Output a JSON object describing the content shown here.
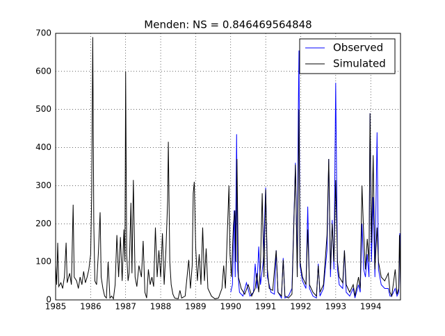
{
  "chart_data": {
    "type": "line",
    "title": "Menden: NS = 0.846469564848",
    "xlim": [
      1985,
      1994.85
    ],
    "xticks": [
      1985,
      1986,
      1987,
      1988,
      1989,
      1990,
      1991,
      1992,
      1993,
      1994
    ],
    "ylim": [
      0,
      700
    ],
    "yticks": [
      0,
      100,
      200,
      300,
      400,
      500,
      600,
      700
    ],
    "grid": true,
    "legend": "upper right",
    "series": [
      {
        "name": "Observed",
        "color": "#0000ff",
        "x": [
          1990.0,
          1990.05,
          1990.1,
          1990.13,
          1990.17,
          1990.2,
          1990.25,
          1990.35,
          1990.45,
          1990.55,
          1990.65,
          1990.7,
          1990.75,
          1990.8,
          1990.85,
          1990.93,
          1991.0,
          1991.05,
          1991.15,
          1991.25,
          1991.3,
          1991.35,
          1991.45,
          1991.5,
          1991.55,
          1991.65,
          1991.75,
          1991.85,
          1991.9,
          1991.93,
          1991.95,
          1991.98,
          1992.05,
          1992.15,
          1992.2,
          1992.25,
          1992.35,
          1992.45,
          1992.5,
          1992.55,
          1992.65,
          1992.75,
          1992.8,
          1992.85,
          1992.9,
          1992.95,
          1993.0,
          1993.05,
          1993.1,
          1993.2,
          1993.25,
          1993.3,
          1993.4,
          1993.5,
          1993.55,
          1993.65,
          1993.7,
          1993.75,
          1993.8,
          1993.85,
          1993.9,
          1993.95,
          1993.98,
          1994.02,
          1994.07,
          1994.12,
          1994.18,
          1994.22,
          1994.3,
          1994.4,
          1994.5,
          1994.55,
          1994.6,
          1994.7,
          1994.75,
          1994.8,
          1994.83,
          1994.85
        ],
        "values": [
          20,
          40,
          235,
          60,
          435,
          80,
          20,
          10,
          45,
          10,
          20,
          95,
          30,
          140,
          40,
          100,
          295,
          60,
          20,
          15,
          130,
          20,
          5,
          110,
          5,
          10,
          30,
          360,
          80,
          490,
          655,
          90,
          50,
          30,
          245,
          30,
          10,
          5,
          95,
          10,
          30,
          130,
          370,
          60,
          210,
          80,
          570,
          80,
          40,
          30,
          130,
          20,
          10,
          30,
          5,
          40,
          20,
          200,
          80,
          60,
          120,
          60,
          490,
          100,
          270,
          60,
          440,
          80,
          40,
          30,
          30,
          10,
          10,
          30,
          10,
          20,
          175,
          30
        ]
      },
      {
        "name": "Simulated",
        "color": "#000000",
        "x": [
          1985.0,
          1985.03,
          1985.06,
          1985.09,
          1985.15,
          1985.2,
          1985.25,
          1985.3,
          1985.33,
          1985.4,
          1985.45,
          1985.5,
          1985.53,
          1985.6,
          1985.65,
          1985.7,
          1985.75,
          1985.8,
          1985.85,
          1985.9,
          1985.95,
          1986.0,
          1986.03,
          1986.06,
          1986.09,
          1986.12,
          1986.17,
          1986.22,
          1986.27,
          1986.3,
          1986.35,
          1986.4,
          1986.45,
          1986.5,
          1986.55,
          1986.6,
          1986.65,
          1986.7,
          1986.75,
          1986.8,
          1986.85,
          1986.9,
          1986.95,
          1986.98,
          1987.0,
          1987.03,
          1987.07,
          1987.1,
          1987.15,
          1987.18,
          1987.22,
          1987.27,
          1987.32,
          1987.38,
          1987.45,
          1987.5,
          1987.55,
          1987.6,
          1987.65,
          1987.7,
          1987.75,
          1987.8,
          1987.85,
          1987.9,
          1987.95,
          1988.0,
          1988.05,
          1988.1,
          1988.15,
          1988.2,
          1988.22,
          1988.26,
          1988.3,
          1988.35,
          1988.4,
          1988.5,
          1988.55,
          1988.6,
          1988.7,
          1988.8,
          1988.85,
          1988.9,
          1988.93,
          1988.96,
          1989.0,
          1989.05,
          1989.1,
          1989.15,
          1989.2,
          1989.25,
          1989.3,
          1989.35,
          1989.45,
          1989.55,
          1989.65,
          1989.75,
          1989.8,
          1989.85,
          1989.95,
          1989.98,
          1990.02,
          1990.08,
          1990.12,
          1990.15,
          1990.18,
          1990.22,
          1990.3,
          1990.4,
          1990.5,
          1990.6,
          1990.7,
          1990.75,
          1990.8,
          1990.85,
          1990.9,
          1990.95,
          1991.0,
          1991.05,
          1991.1,
          1991.2,
          1991.3,
          1991.35,
          1991.45,
          1991.5,
          1991.55,
          1991.65,
          1991.75,
          1991.85,
          1991.9,
          1991.95,
          1991.98,
          1992.05,
          1992.15,
          1992.2,
          1992.25,
          1992.35,
          1992.45,
          1992.5,
          1992.55,
          1992.65,
          1992.75,
          1992.8,
          1992.85,
          1992.9,
          1992.95,
          1993.0,
          1993.05,
          1993.1,
          1993.2,
          1993.25,
          1993.3,
          1993.4,
          1993.5,
          1993.55,
          1993.65,
          1993.7,
          1993.75,
          1993.8,
          1993.85,
          1993.9,
          1993.95,
          1993.98,
          1994.02,
          1994.07,
          1994.12,
          1994.18,
          1994.22,
          1994.3,
          1994.4,
          1994.5,
          1994.55,
          1994.6,
          1994.7,
          1994.75,
          1994.8,
          1994.82,
          1994.85
        ],
        "values": [
          90,
          40,
          150,
          35,
          45,
          30,
          60,
          150,
          45,
          70,
          40,
          250,
          60,
          50,
          30,
          60,
          40,
          75,
          45,
          60,
          80,
          120,
          280,
          690,
          200,
          50,
          40,
          120,
          230,
          60,
          30,
          10,
          5,
          100,
          5,
          10,
          3,
          40,
          170,
          60,
          165,
          50,
          185,
          100,
          600,
          120,
          50,
          70,
          255,
          70,
          315,
          60,
          35,
          90,
          60,
          155,
          20,
          5,
          80,
          40,
          60,
          35,
          190,
          60,
          130,
          60,
          175,
          40,
          130,
          260,
          415,
          100,
          40,
          15,
          5,
          3,
          25,
          5,
          10,
          105,
          30,
          90,
          280,
          310,
          140,
          50,
          120,
          40,
          190,
          50,
          135,
          30,
          10,
          3,
          5,
          30,
          90,
          30,
          300,
          120,
          60,
          200,
          235,
          100,
          370,
          60,
          30,
          15,
          40,
          10,
          30,
          70,
          20,
          90,
          280,
          60,
          290,
          80,
          30,
          25,
          130,
          20,
          10,
          105,
          10,
          5,
          15,
          355,
          60,
          500,
          100,
          60,
          40,
          185,
          40,
          20,
          10,
          90,
          20,
          40,
          170,
          370,
          80,
          200,
          100,
          315,
          100,
          60,
          45,
          130,
          40,
          20,
          40,
          10,
          60,
          30,
          300,
          170,
          80,
          160,
          100,
          490,
          150,
          380,
          80,
          190,
          100,
          60,
          50,
          70,
          20,
          10,
          80,
          15,
          30,
          170,
          40
        ]
      }
    ]
  }
}
